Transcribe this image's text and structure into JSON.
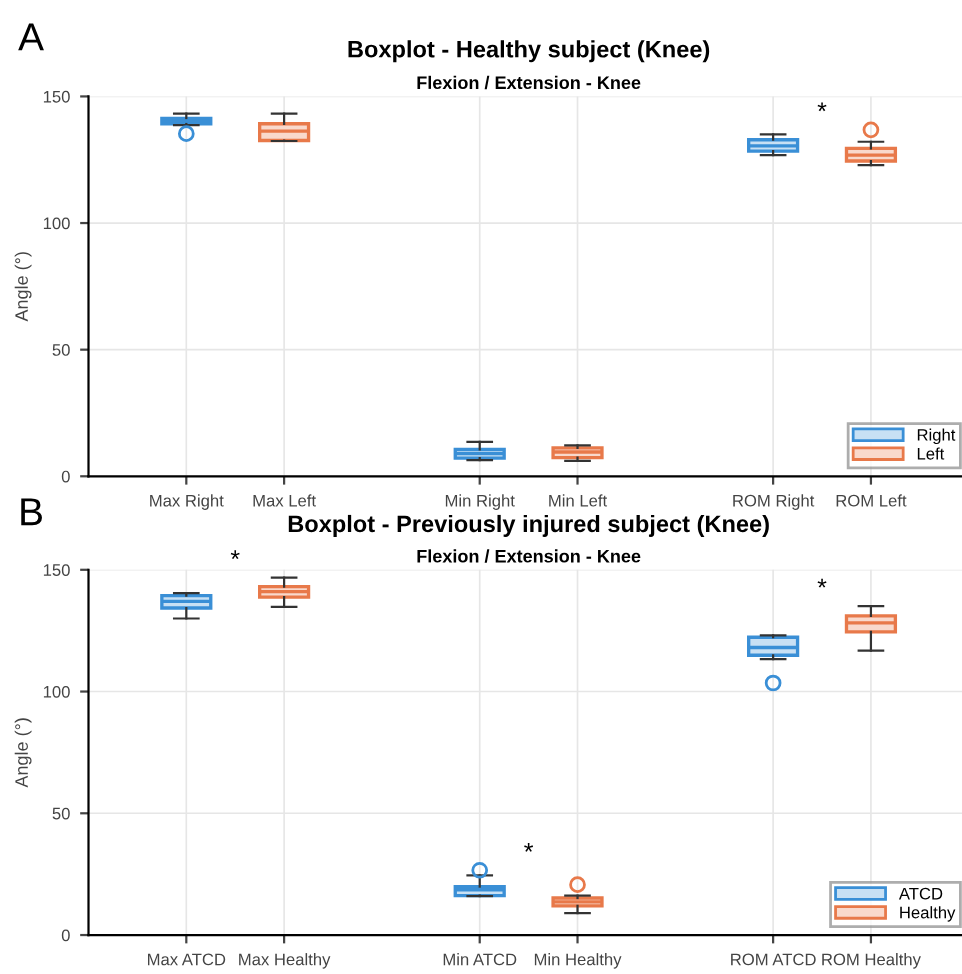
{
  "chart_data": [
    {
      "type": "box",
      "title": "Boxplot - Healthy subject (Knee)",
      "subtitle": "Flexion / Extension - Knee",
      "ylabel": "Angle (°)",
      "categories": [
        "Max Right",
        "Max Left",
        null,
        "Min Right",
        "Min Left",
        null,
        "ROM Right",
        "ROM Left"
      ],
      "series": [
        {
          "name": "Right",
          "color": "#3a8fd6",
          "boxes": [
            {
              "low": 138.7,
              "q1": 139.2,
              "median": 140.3,
              "q3": 141.3,
              "high": 143.2,
              "outliers": [
                135.3
              ]
            },
            null,
            null,
            {
              "low": 6.4,
              "q1": 7.2,
              "median": 9,
              "q3": 10.6,
              "high": 13.6
            },
            null,
            null,
            {
              "low": 126.8,
              "q1": 128.4,
              "median": 130.5,
              "q3": 132.9,
              "high": 135
            },
            null
          ]
        },
        {
          "name": "Left",
          "color": "#e8794a",
          "boxes": [
            null,
            {
              "low": 132.4,
              "q1": 132.6,
              "median": 136.3,
              "q3": 139.2,
              "high": 143.2
            },
            null,
            null,
            {
              "low": 6.1,
              "q1": 7.4,
              "median": 9.6,
              "q3": 11.2,
              "high": 12.2
            },
            null,
            null,
            {
              "low": 122.9,
              "q1": 124.5,
              "median": 126.8,
              "q3": 129.5,
              "high": 132.1,
              "outliers": [
                136.8
              ]
            }
          ]
        }
      ],
      "annotations": [
        "A",
        "*"
      ],
      "ylim": [
        0,
        150
      ],
      "yticks": [
        0,
        50,
        100,
        150
      ],
      "grid": true,
      "legend": "bottom right"
    },
    {
      "type": "box",
      "title": "Boxplot - Previously injured subject (Knee)",
      "subtitle": "Flexion / Extension - Knee",
      "ylabel": "Angle (°)",
      "categories": [
        "Max ATCD",
        "Max Healthy",
        null,
        "Min ATCD",
        "Min Healthy",
        null,
        "ROM ATCD",
        "ROM Healthy"
      ],
      "series": [
        {
          "name": "ATCD",
          "color": "#3a8fd6",
          "boxes": [
            {
              "low": 130,
              "q1": 134.3,
              "median": 137,
              "q3": 139.4,
              "high": 140.4
            },
            null,
            null,
            {
              "low": 16,
              "q1": 16.2,
              "median": 18.6,
              "q3": 19.9,
              "high": 24.5,
              "outliers": [
                26.6
              ]
            },
            null,
            null,
            {
              "low": 113.3,
              "q1": 114.9,
              "median": 118.1,
              "q3": 122.3,
              "high": 123.1,
              "outliers": [
                103.5
              ]
            },
            null
          ]
        },
        {
          "name": "Healthy",
          "color": "#e8794a",
          "boxes": [
            null,
            {
              "low": 134.8,
              "q1": 138.8,
              "median": 141,
              "q3": 143.1,
              "high": 146.8
            },
            null,
            null,
            {
              "low": 9,
              "q1": 12,
              "median": 13.6,
              "q3": 15.2,
              "high": 16.2,
              "outliers": [
                20.7
              ]
            },
            null,
            null,
            {
              "low": 116.8,
              "q1": 124.5,
              "median": 128.2,
              "q3": 131.1,
              "high": 135.1
            }
          ]
        }
      ],
      "annotations": [
        "B",
        "*",
        "*",
        "*"
      ],
      "ylim": [
        0,
        150
      ],
      "yticks": [
        0,
        50,
        100,
        150
      ],
      "grid": true,
      "legend": "bottom right"
    }
  ]
}
